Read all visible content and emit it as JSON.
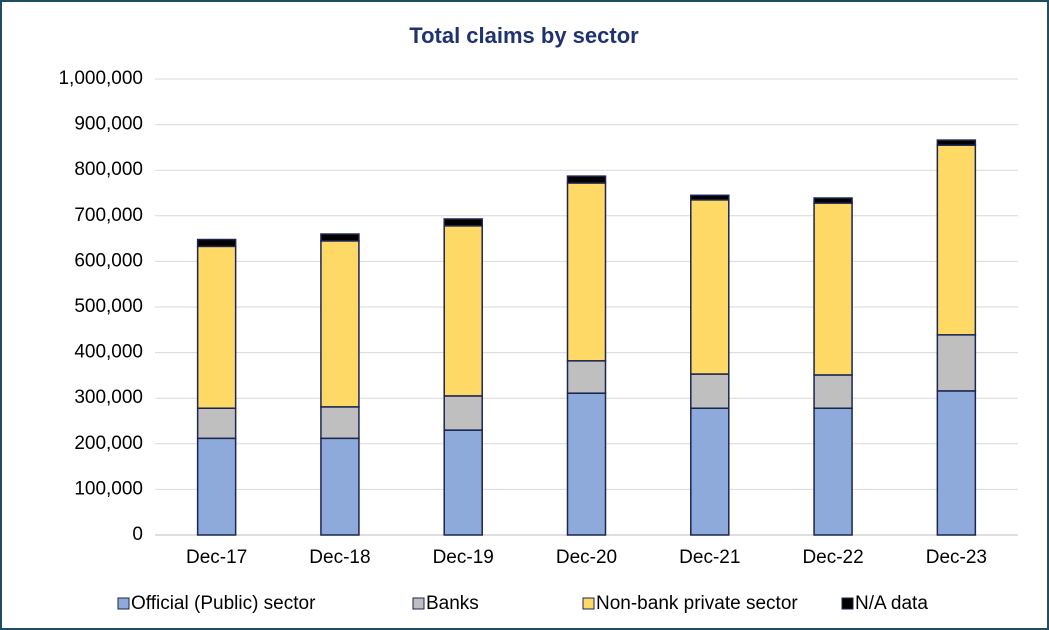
{
  "chart_data": {
    "type": "stacked_bar",
    "title": "Total claims by sector",
    "categories": [
      "Dec-17",
      "Dec-18",
      "Dec-19",
      "Dec-20",
      "Dec-21",
      "Dec-22",
      "Dec-23"
    ],
    "series": [
      {
        "name": "Official (Public) sector",
        "color": "#8eaadb",
        "values": [
          212000,
          212000,
          230000,
          311000,
          278000,
          278000,
          316000
        ]
      },
      {
        "name": "Banks",
        "color": "#bfbfbf",
        "values": [
          66000,
          69000,
          75000,
          71000,
          75000,
          73000,
          123000
        ]
      },
      {
        "name": "Non-bank private sector",
        "color": "#ffd966",
        "values": [
          355000,
          364000,
          373000,
          390000,
          382000,
          377000,
          416000
        ]
      },
      {
        "name": "N/A data",
        "color": "#000000",
        "values": [
          15000,
          15000,
          15000,
          15000,
          10000,
          11000,
          11000
        ]
      }
    ],
    "ylim": [
      0,
      1000000
    ],
    "yticks": [
      0,
      {
        "value": 100000,
        "label": "100,000"
      },
      {
        "value": 200000,
        "label": "200,000"
      },
      {
        "value": 300000,
        "label": "300,000"
      },
      {
        "value": 400000,
        "label": "400,000"
      },
      {
        "value": 500000,
        "label": "500,000"
      },
      {
        "value": 600000,
        "label": "600,000"
      },
      {
        "value": 700000,
        "label": "700,000"
      },
      {
        "value": 800000,
        "label": "800,000"
      },
      {
        "value": 900000,
        "label": "900,000"
      },
      {
        "value": 1000000,
        "label": "1,000,000"
      }
    ],
    "grid": true,
    "legend": "bottom"
  }
}
